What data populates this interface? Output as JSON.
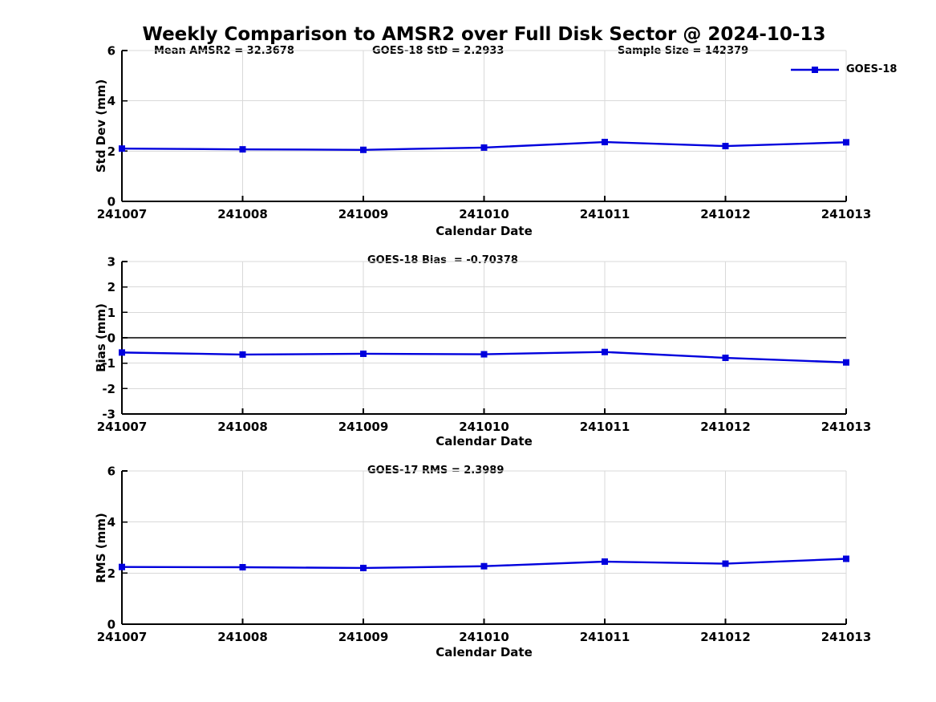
{
  "title": "Weekly Comparison to AMSR2 over Full Disk Sector @ 2024-10-13",
  "legend": {
    "label": "GOES-18",
    "color": "#0000dd"
  },
  "colors": {
    "line": "#0000dd",
    "marker": "#0000dd",
    "grid": "#d9d9d9",
    "zero_line": "#3f3f3f",
    "axis": "#000000"
  },
  "chart_data": [
    {
      "type": "line",
      "series_name": "GOES-18",
      "title_annotations": [
        "Mean AMSR2 = 32.3678",
        "GOES-18 StD = 2.2933",
        "Sample Size = 142379"
      ],
      "x": [
        "241007",
        "241008",
        "241009",
        "241010",
        "241011",
        "241012",
        "241013"
      ],
      "values": [
        2.1,
        2.07,
        2.05,
        2.14,
        2.36,
        2.2,
        2.35
      ],
      "xlabel": "Calendar Date",
      "ylabel": "Std Dev (mm)",
      "ylim": [
        0,
        6
      ],
      "yticks": [
        0,
        2,
        4,
        6
      ],
      "grid": true,
      "legend_position": "top-right-outside"
    },
    {
      "type": "line",
      "series_name": "GOES-18",
      "annotation": "GOES-18 Bias  = -0.70378",
      "x": [
        "241007",
        "241008",
        "241009",
        "241010",
        "241011",
        "241012",
        "241013"
      ],
      "values": [
        -0.58,
        -0.66,
        -0.63,
        -0.65,
        -0.56,
        -0.79,
        -0.97
      ],
      "xlabel": "Calendar Date",
      "ylabel": "Bias (mm)",
      "ylim": [
        -3,
        3
      ],
      "yticks": [
        -3,
        -2,
        -1,
        0,
        1,
        2,
        3
      ],
      "grid": true,
      "zero_line": true
    },
    {
      "type": "line",
      "series_name": "GOES-18",
      "annotation": "GOES-17 RMS = 2.3989",
      "x": [
        "241007",
        "241008",
        "241009",
        "241010",
        "241011",
        "241012",
        "241013"
      ],
      "values": [
        2.24,
        2.23,
        2.2,
        2.27,
        2.45,
        2.37,
        2.56
      ],
      "xlabel": "Calendar Date",
      "ylabel": "RMS (mm)",
      "ylim": [
        0,
        6
      ],
      "yticks": [
        0,
        2,
        4,
        6
      ],
      "grid": true
    }
  ]
}
